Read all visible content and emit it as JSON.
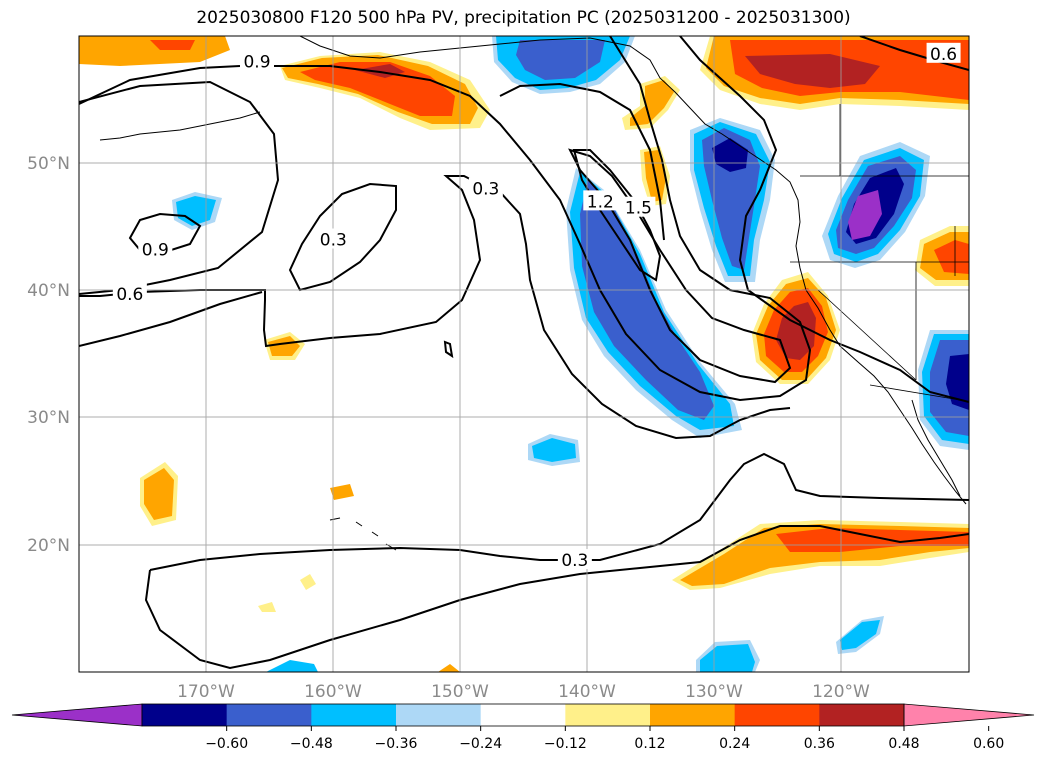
{
  "title": "2025030800 F120 500 hPa PV, precipitation PC (2025031200 - 2025031300)",
  "map": {
    "lat_ticks": [
      "50°N",
      "40°N",
      "30°N",
      "20°N"
    ],
    "lon_ticks": [
      "170°W",
      "160°W",
      "150°W",
      "140°W",
      "130°W",
      "120°W"
    ],
    "extent": {
      "lon": [
        -180,
        -110
      ],
      "lat": [
        10,
        60
      ]
    },
    "grid": true
  },
  "contours": {
    "pv_labels": [
      {
        "text": "0.9",
        "lon": -166,
        "lat": 58
      },
      {
        "text": "0.6",
        "lon": -112,
        "lat": 58.6
      },
      {
        "text": "0.9",
        "lon": -174,
        "lat": 43.2
      },
      {
        "text": "0.3",
        "lon": -160,
        "lat": 44
      },
      {
        "text": "0.3",
        "lon": -148,
        "lat": 48
      },
      {
        "text": "1.2",
        "lon": -139,
        "lat": 47
      },
      {
        "text": "1.5",
        "lon": -136,
        "lat": 46.5
      },
      {
        "text": "0.6",
        "lon": -176,
        "lat": 39.7
      },
      {
        "text": "0.3",
        "lon": -141,
        "lat": 18.8
      }
    ]
  },
  "colorbar": {
    "tick_labels": [
      "−0.60",
      "−0.48",
      "−0.36",
      "−0.24",
      "−0.12",
      "0.12",
      "0.24",
      "0.36",
      "0.48",
      "0.60"
    ],
    "colors": [
      "#9b30c8",
      "#00008b",
      "#3a5fcd",
      "#00bfff",
      "#add8f6",
      "#ffffff",
      "#fff08a",
      "#ffa500",
      "#ff4500",
      "#b22222",
      "#ff82ab"
    ]
  }
}
